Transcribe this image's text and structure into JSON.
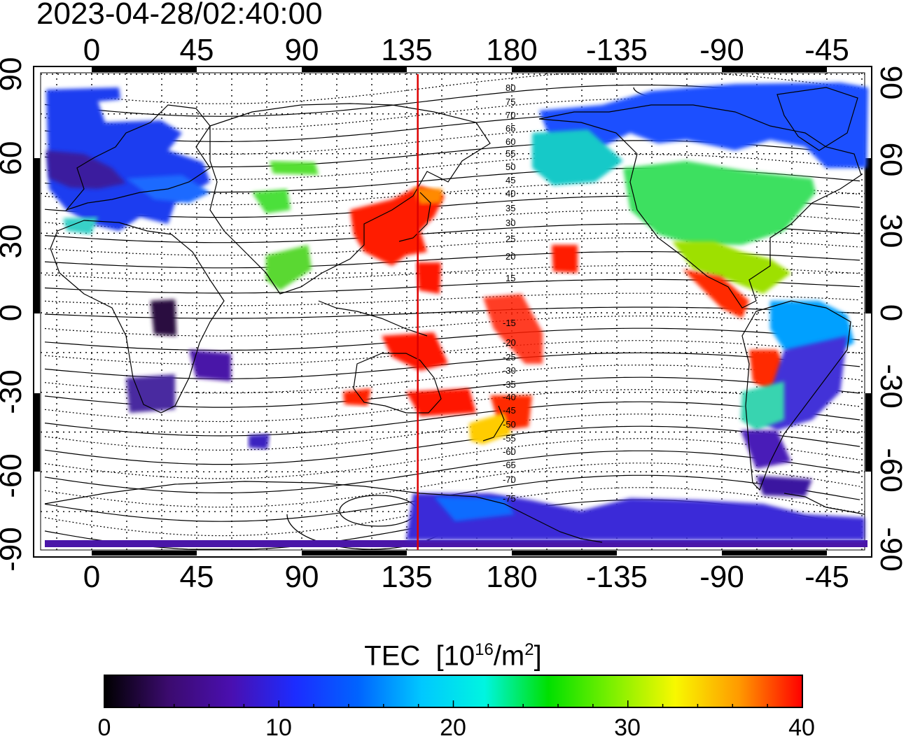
{
  "timestamp": "2023-04-28/02:40:00",
  "map": {
    "lon_labels": [
      "0",
      "45",
      "90",
      "135",
      "180",
      "-135",
      "-90",
      "-45"
    ],
    "lat_labels": [
      "90",
      "60",
      "30",
      "0",
      "-30",
      "-60",
      "-90"
    ],
    "maglat_labels_north": [
      "80",
      "75",
      "70",
      "65",
      "60",
      "55",
      "50",
      "45",
      "40",
      "35",
      "30",
      "25",
      "20",
      "15"
    ],
    "maglat_labels_south": [
      "-15",
      "-20",
      "-25",
      "-30",
      "-35",
      "-40",
      "-45",
      "-50",
      "-55",
      "-60",
      "-65",
      "-70",
      "-75"
    ],
    "meridian_line_color": "#dd0000",
    "meridian_line_lon": 139.7
  },
  "colorbar": {
    "title": "TEC",
    "unit_prefix": "[10",
    "unit_exp": "16",
    "unit_mid": "/m",
    "unit_exp2": "2",
    "unit_suffix": "]",
    "ticks": [
      "0",
      "10",
      "20",
      "30",
      "40"
    ],
    "min": 0,
    "max": 40,
    "colors": [
      "#000000",
      "#3b0b6e",
      "#4a0fb0",
      "#1c2cff",
      "#0064ff",
      "#00c8ff",
      "#00f5e0",
      "#00e000",
      "#7cf000",
      "#f8f800",
      "#ff9a00",
      "#ff0000"
    ]
  }
}
